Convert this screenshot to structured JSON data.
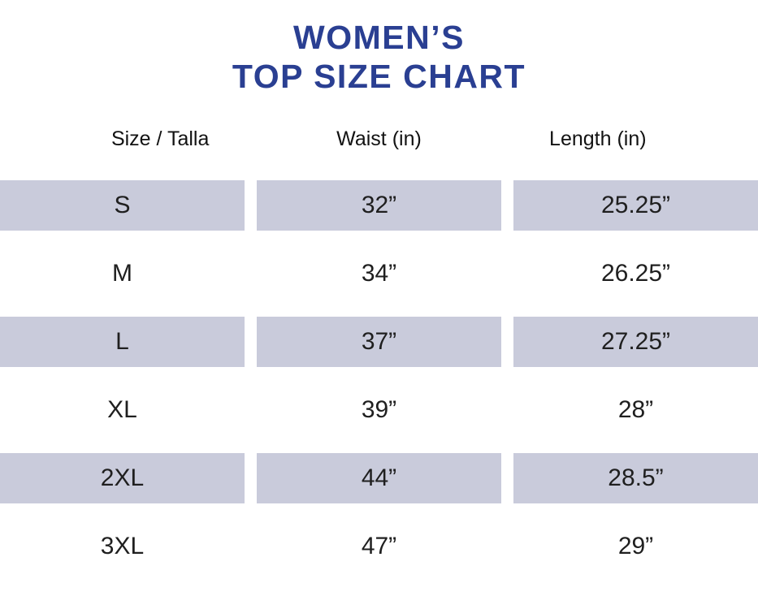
{
  "title": {
    "line1": "WOMEN’S",
    "line2": "TOP SIZE CHART"
  },
  "colors": {
    "title": "#2a3f92",
    "row_shade": "#c9cbdb",
    "text": "#1f1f1f",
    "background": "#ffffff"
  },
  "chart_data": {
    "type": "table",
    "title": "WOMEN’S TOP SIZE CHART",
    "columns": [
      "Size / Talla",
      "Waist (in)",
      "Length (in)"
    ],
    "rows": [
      [
        "S",
        "32”",
        "25.25”"
      ],
      [
        "M",
        "34”",
        "26.25”"
      ],
      [
        "L",
        "37”",
        "27.25”"
      ],
      [
        "XL",
        "39”",
        "28”"
      ],
      [
        "2XL",
        "44”",
        "28.5”"
      ],
      [
        "3XL",
        "47”",
        "29”"
      ]
    ],
    "shaded_rows": [
      0,
      2,
      4
    ],
    "layout": {
      "legend": "none",
      "grid": "off",
      "row_style": "alternating shaded bands, shaded first"
    }
  }
}
